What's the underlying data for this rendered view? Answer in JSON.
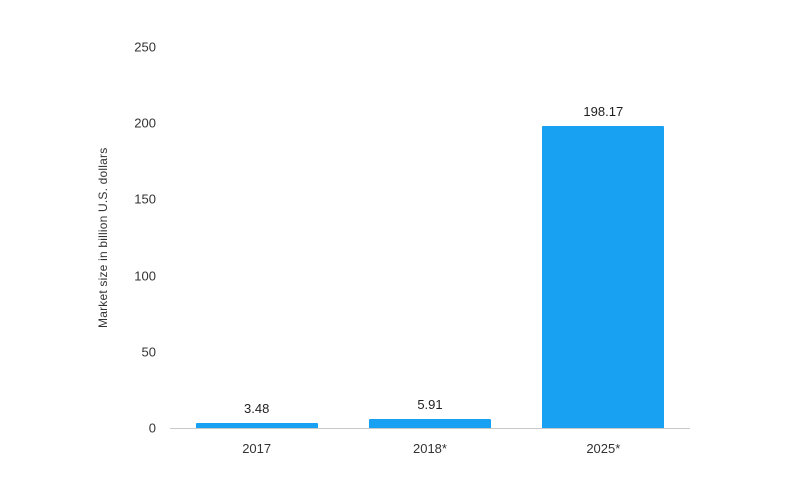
{
  "chart_data": {
    "type": "bar",
    "categories": [
      "2017",
      "2018*",
      "2025*"
    ],
    "values": [
      3.48,
      5.91,
      198.17
    ],
    "value_labels": [
      "3.48",
      "5.91",
      "198.17"
    ],
    "title": "",
    "xlabel": "",
    "ylabel": "Market size in billion U.S. dollars",
    "ylim": [
      0,
      250
    ],
    "yticks": [
      0,
      50,
      100,
      150,
      200,
      250
    ],
    "grid": false,
    "legend": false,
    "bar_color": "#18a1f2",
    "axis_line_color": "#c9c9c9",
    "text_color": "#333333"
  }
}
